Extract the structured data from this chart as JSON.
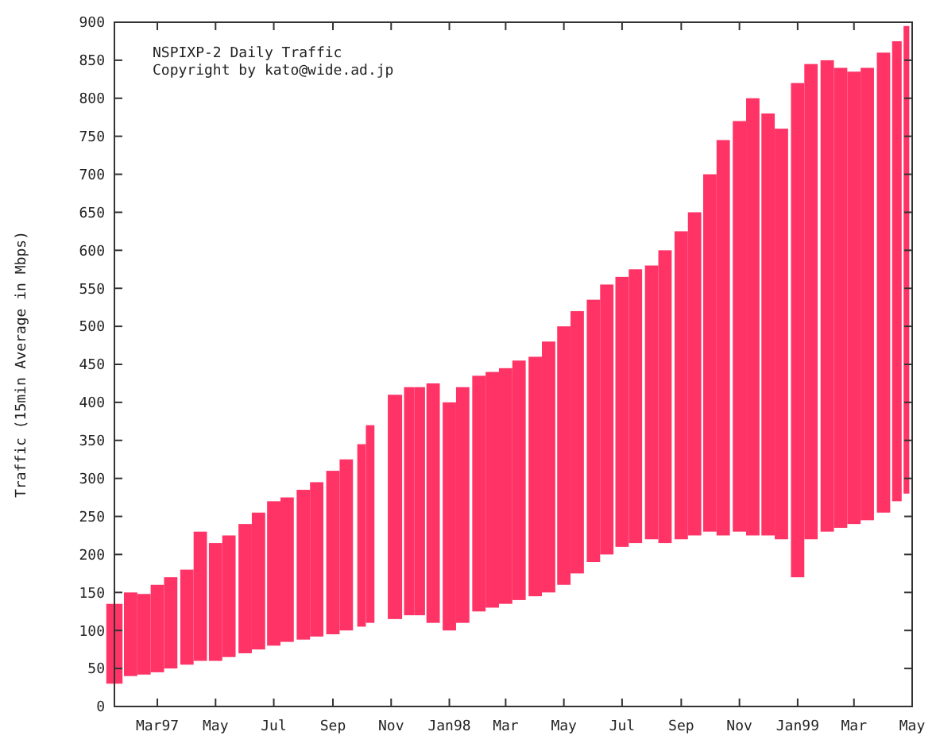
{
  "chart_data": {
    "type": "bar",
    "title": "NSPIXP-2 Daily Traffic",
    "annotations": [
      "Copyright by kato@wide.ad.jp"
    ],
    "ylabel": "Traffic (15min Average in Mbps)",
    "x": [
      "1997-01-15",
      "1997-02-01",
      "1997-02-15",
      "1997-03-01",
      "1997-03-15",
      "1997-04-01",
      "1997-04-15",
      "1997-05-01",
      "1997-05-15",
      "1997-06-01",
      "1997-06-15",
      "1997-07-01",
      "1997-07-15",
      "1997-08-01",
      "1997-08-15",
      "1997-09-01",
      "1997-09-15",
      "1997-10-01",
      "1997-10-10",
      "1997-10-20",
      "1997-11-05",
      "1997-11-20",
      "1997-12-01",
      "1997-12-15",
      "1998-01-01",
      "1998-01-15",
      "1998-02-01",
      "1998-02-15",
      "1998-03-01",
      "1998-03-15",
      "1998-04-01",
      "1998-04-15",
      "1998-05-01",
      "1998-05-15",
      "1998-06-01",
      "1998-06-15",
      "1998-07-01",
      "1998-07-15",
      "1998-08-01",
      "1998-08-15",
      "1998-09-01",
      "1998-09-15",
      "1998-10-01",
      "1998-10-15",
      "1998-11-01",
      "1998-11-15",
      "1998-12-01",
      "1998-12-15",
      "1999-01-01",
      "1999-01-15",
      "1999-02-01",
      "1999-02-15",
      "1999-03-01",
      "1999-03-15",
      "1999-04-01",
      "1999-04-15",
      "1999-04-25"
    ],
    "base": [
      30,
      40,
      42,
      45,
      50,
      55,
      60,
      60,
      65,
      70,
      75,
      80,
      85,
      88,
      92,
      95,
      100,
      105,
      110,
      null,
      115,
      120,
      120,
      110,
      100,
      110,
      125,
      130,
      135,
      140,
      145,
      150,
      160,
      175,
      190,
      200,
      210,
      215,
      220,
      215,
      220,
      225,
      230,
      225,
      230,
      225,
      225,
      220,
      170,
      220,
      230,
      235,
      240,
      245,
      255,
      270,
      280
    ],
    "values": [
      105,
      110,
      106,
      115,
      120,
      125,
      170,
      155,
      160,
      170,
      180,
      190,
      190,
      197,
      203,
      215,
      225,
      240,
      260,
      null,
      295,
      300,
      300,
      315,
      300,
      310,
      310,
      310,
      310,
      315,
      315,
      330,
      340,
      345,
      345,
      355,
      355,
      360,
      360,
      385,
      405,
      425,
      470,
      520,
      540,
      575,
      555,
      540,
      650,
      625,
      620,
      605,
      595,
      595,
      605,
      605,
      615
    ],
    "color": "#ff3366",
    "xlim": [
      "1997-01-15",
      "1999-05-01"
    ],
    "xticks": [
      {
        "value": "1997-03-01",
        "label": "Mar97"
      },
      {
        "value": "1997-05-01",
        "label": "May"
      },
      {
        "value": "1997-07-01",
        "label": "Jul"
      },
      {
        "value": "1997-09-01",
        "label": "Sep"
      },
      {
        "value": "1997-11-01",
        "label": "Nov"
      },
      {
        "value": "1998-01-01",
        "label": "Jan98"
      },
      {
        "value": "1998-03-01",
        "label": "Mar"
      },
      {
        "value": "1998-05-01",
        "label": "May"
      },
      {
        "value": "1998-07-01",
        "label": "Jul"
      },
      {
        "value": "1998-09-01",
        "label": "Sep"
      },
      {
        "value": "1998-11-01",
        "label": "Nov"
      },
      {
        "value": "1999-01-01",
        "label": "Jan99"
      },
      {
        "value": "1999-03-01",
        "label": "Mar"
      },
      {
        "value": "1999-05-01",
        "label": "May"
      }
    ],
    "ylim": [
      0,
      900
    ],
    "yticks": [
      0,
      50,
      100,
      150,
      200,
      250,
      300,
      350,
      400,
      450,
      500,
      550,
      600,
      650,
      700,
      750,
      800,
      850,
      900
    ],
    "grid": false
  }
}
